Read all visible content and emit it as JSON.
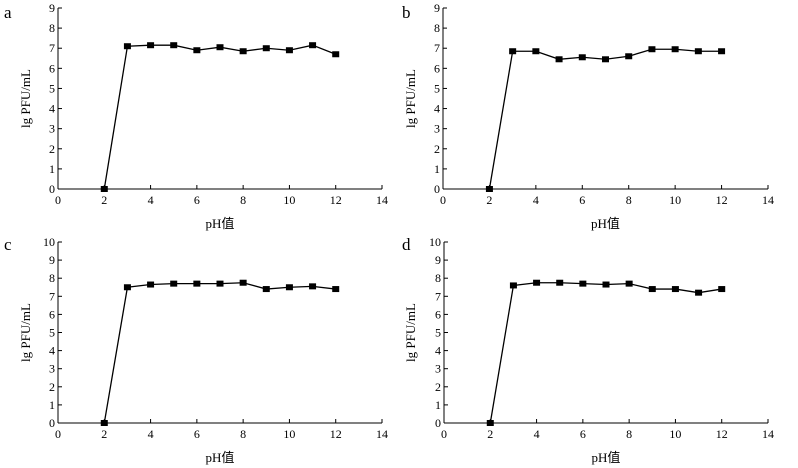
{
  "chart_data": [
    {
      "type": "line",
      "panel_label": "a",
      "xlabel": "pH值",
      "ylabel": "lg PFU/mL",
      "xlim": [
        0,
        14
      ],
      "ylim": [
        0,
        9
      ],
      "xticks": [
        0,
        2,
        4,
        6,
        8,
        10,
        12,
        14
      ],
      "yticks": [
        0,
        1,
        2,
        3,
        4,
        5,
        6,
        7,
        8,
        9
      ],
      "grid": false,
      "marker": "square",
      "color": "#000000",
      "x": [
        2,
        3,
        4,
        5,
        6,
        7,
        8,
        9,
        10,
        11,
        12
      ],
      "y": [
        0,
        7.1,
        7.15,
        7.15,
        6.9,
        7.05,
        6.85,
        7.0,
        6.9,
        7.15,
        6.7
      ]
    },
    {
      "type": "line",
      "panel_label": "b",
      "xlabel": "pH值",
      "ylabel": "lg PFU/mL",
      "xlim": [
        0,
        14
      ],
      "ylim": [
        0,
        9
      ],
      "xticks": [
        0,
        2,
        4,
        6,
        8,
        10,
        12,
        14
      ],
      "yticks": [
        0,
        1,
        2,
        3,
        4,
        5,
        6,
        7,
        8,
        9
      ],
      "grid": false,
      "marker": "square",
      "color": "#000000",
      "x": [
        2,
        3,
        4,
        5,
        6,
        7,
        8,
        9,
        10,
        11,
        12
      ],
      "y": [
        0,
        6.85,
        6.85,
        6.45,
        6.55,
        6.45,
        6.6,
        6.95,
        6.95,
        6.85,
        6.85
      ]
    },
    {
      "type": "line",
      "panel_label": "c",
      "xlabel": "pH值",
      "ylabel": "lg PFU/mL",
      "xlim": [
        0,
        14
      ],
      "ylim": [
        0,
        10
      ],
      "xticks": [
        0,
        2,
        4,
        6,
        8,
        10,
        12,
        14
      ],
      "yticks": [
        0,
        1,
        2,
        3,
        4,
        5,
        6,
        7,
        8,
        9,
        10
      ],
      "grid": false,
      "marker": "square",
      "color": "#000000",
      "x": [
        2,
        3,
        4,
        5,
        6,
        7,
        8,
        9,
        10,
        11,
        12
      ],
      "y": [
        0,
        7.5,
        7.65,
        7.7,
        7.7,
        7.7,
        7.75,
        7.4,
        7.5,
        7.55,
        7.4
      ]
    },
    {
      "type": "line",
      "panel_label": "d",
      "xlabel": "pH值",
      "ylabel": "lg PFU/mL",
      "xlim": [
        0,
        14
      ],
      "ylim": [
        0,
        10
      ],
      "xticks": [
        0,
        2,
        4,
        6,
        8,
        10,
        12,
        14
      ],
      "yticks": [
        0,
        1,
        2,
        3,
        4,
        5,
        6,
        7,
        8,
        9,
        10
      ],
      "grid": false,
      "marker": "square",
      "color": "#000000",
      "x": [
        2,
        3,
        4,
        5,
        6,
        7,
        8,
        9,
        10,
        11,
        12
      ],
      "y": [
        0,
        7.6,
        7.75,
        7.75,
        7.7,
        7.65,
        7.7,
        7.4,
        7.4,
        7.2,
        7.4
      ]
    }
  ]
}
